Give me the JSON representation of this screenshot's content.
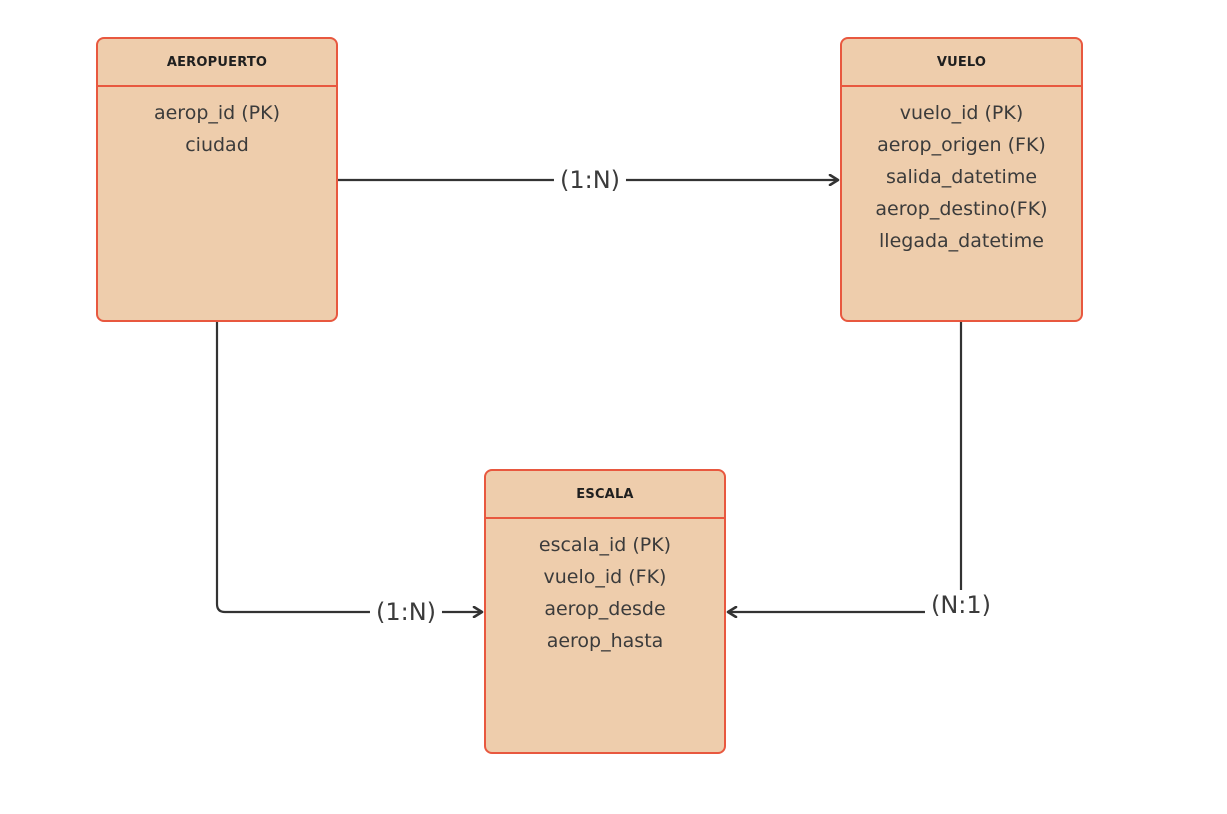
{
  "entities": {
    "aeropuerto": {
      "title": "AEROPUERTO",
      "fields": [
        "aerop_id (PK)",
        "ciudad"
      ]
    },
    "vuelo": {
      "title": "VUELO",
      "fields": [
        "vuelo_id (PK)",
        "aerop_origen (FK)",
        "salida_datetime",
        "aerop_destino(FK)",
        "llegada_datetime"
      ]
    },
    "escala": {
      "title": "ESCALA",
      "fields": [
        "escala_id (PK)",
        "vuelo_id (FK)",
        "aerop_desde",
        "aerop_hasta"
      ]
    }
  },
  "relationships": {
    "aeropuerto_vuelo": "(1:N)",
    "aeropuerto_escala": "(1:N)",
    "vuelo_escala": "(N:1)"
  },
  "colors": {
    "entity_fill": "#eecdac",
    "entity_border": "#e8583f",
    "connector": "#333333"
  }
}
